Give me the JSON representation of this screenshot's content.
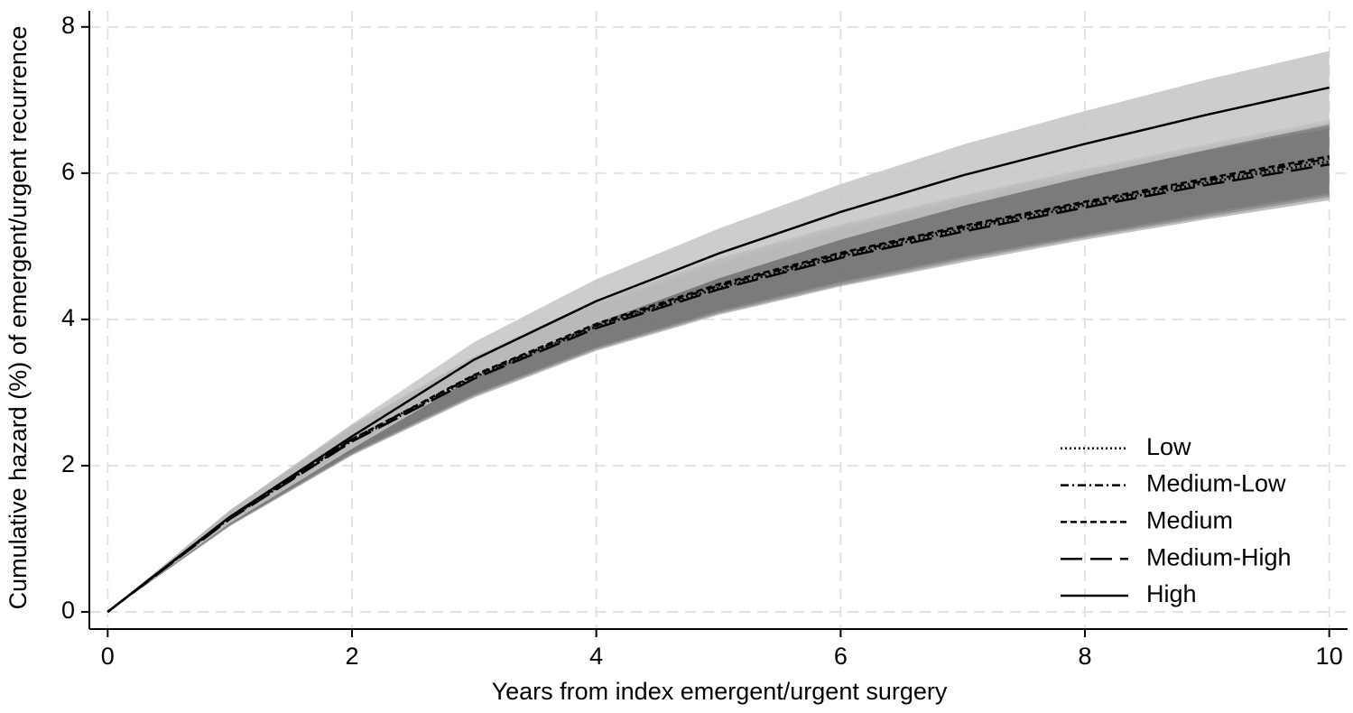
{
  "chart_data": {
    "type": "line",
    "x_label": "Years from index emergent/urgent surgery",
    "y_label": "Cumulative hazard (%) of emergent/urgent recurrence",
    "x": [
      0,
      1,
      2,
      3,
      4,
      5,
      6,
      7,
      8,
      9,
      10
    ],
    "xlim": [
      -0.15,
      10.15
    ],
    "ylim": [
      -0.235,
      8.22
    ],
    "xticks": [
      0,
      2,
      4,
      6,
      8,
      10
    ],
    "yticks": [
      0,
      2,
      4,
      6,
      8
    ],
    "grid": true,
    "legend": "lower right",
    "series": [
      {
        "name": "Low",
        "color": "#000000",
        "dash": "dotted",
        "band_color": "#6e6e6e",
        "values": [
          0,
          1.28,
          2.34,
          3.21,
          3.9,
          4.43,
          4.86,
          5.23,
          5.56,
          5.87,
          6.16
        ],
        "lower": [
          0,
          1.18,
          2.15,
          2.95,
          3.59,
          4.08,
          4.47,
          4.81,
          5.12,
          5.4,
          5.67
        ],
        "upper": [
          0,
          1.38,
          2.53,
          3.47,
          4.21,
          4.78,
          5.25,
          5.65,
          6.0,
          6.34,
          6.65
        ]
      },
      {
        "name": "Medium-Low",
        "color": "#000000",
        "dash": "dashdot",
        "band_color": "#6e6e6e",
        "values": [
          0,
          1.29,
          2.36,
          3.23,
          3.92,
          4.46,
          4.89,
          5.26,
          5.59,
          5.9,
          6.2
        ],
        "lower": [
          0,
          1.19,
          2.17,
          2.97,
          3.61,
          4.1,
          4.5,
          4.84,
          5.14,
          5.43,
          5.7
        ],
        "upper": [
          0,
          1.39,
          2.55,
          3.49,
          4.23,
          4.82,
          5.28,
          5.68,
          6.04,
          6.37,
          6.7
        ]
      },
      {
        "name": "Medium",
        "color": "#000000",
        "dash": "dashed",
        "band_color": "#6e6e6e",
        "values": [
          0,
          1.29,
          2.36,
          3.24,
          3.94,
          4.48,
          4.91,
          5.28,
          5.61,
          5.93,
          6.23
        ],
        "lower": [
          0,
          1.19,
          2.17,
          2.98,
          3.62,
          4.12,
          4.52,
          4.86,
          5.16,
          5.46,
          5.73
        ],
        "upper": [
          0,
          1.39,
          2.55,
          3.5,
          4.26,
          4.84,
          5.3,
          5.7,
          6.06,
          6.4,
          6.73
        ]
      },
      {
        "name": "Medium-High",
        "color": "#000000",
        "dash": "longdash",
        "band_color": "#6e6e6e",
        "values": [
          0,
          1.27,
          2.33,
          3.19,
          3.88,
          4.41,
          4.84,
          5.2,
          5.53,
          5.84,
          6.12
        ],
        "lower": [
          0,
          1.17,
          2.14,
          2.93,
          3.57,
          4.06,
          4.45,
          4.78,
          5.09,
          5.37,
          5.63
        ],
        "upper": [
          0,
          1.37,
          2.52,
          3.45,
          4.19,
          4.76,
          5.23,
          5.62,
          5.97,
          6.31,
          6.61
        ]
      },
      {
        "name": "High",
        "color": "#000000",
        "dash": "solid",
        "band_color": "#c4c4c4",
        "values": [
          0,
          1.3,
          2.4,
          3.45,
          4.25,
          4.9,
          5.47,
          5.97,
          6.4,
          6.8,
          7.17
        ],
        "lower": [
          0,
          1.21,
          2.23,
          3.21,
          3.95,
          4.56,
          5.09,
          5.55,
          5.95,
          6.32,
          6.67
        ],
        "upper": [
          0,
          1.39,
          2.57,
          3.69,
          4.55,
          5.24,
          5.85,
          6.39,
          6.85,
          7.28,
          7.67
        ]
      }
    ]
  }
}
